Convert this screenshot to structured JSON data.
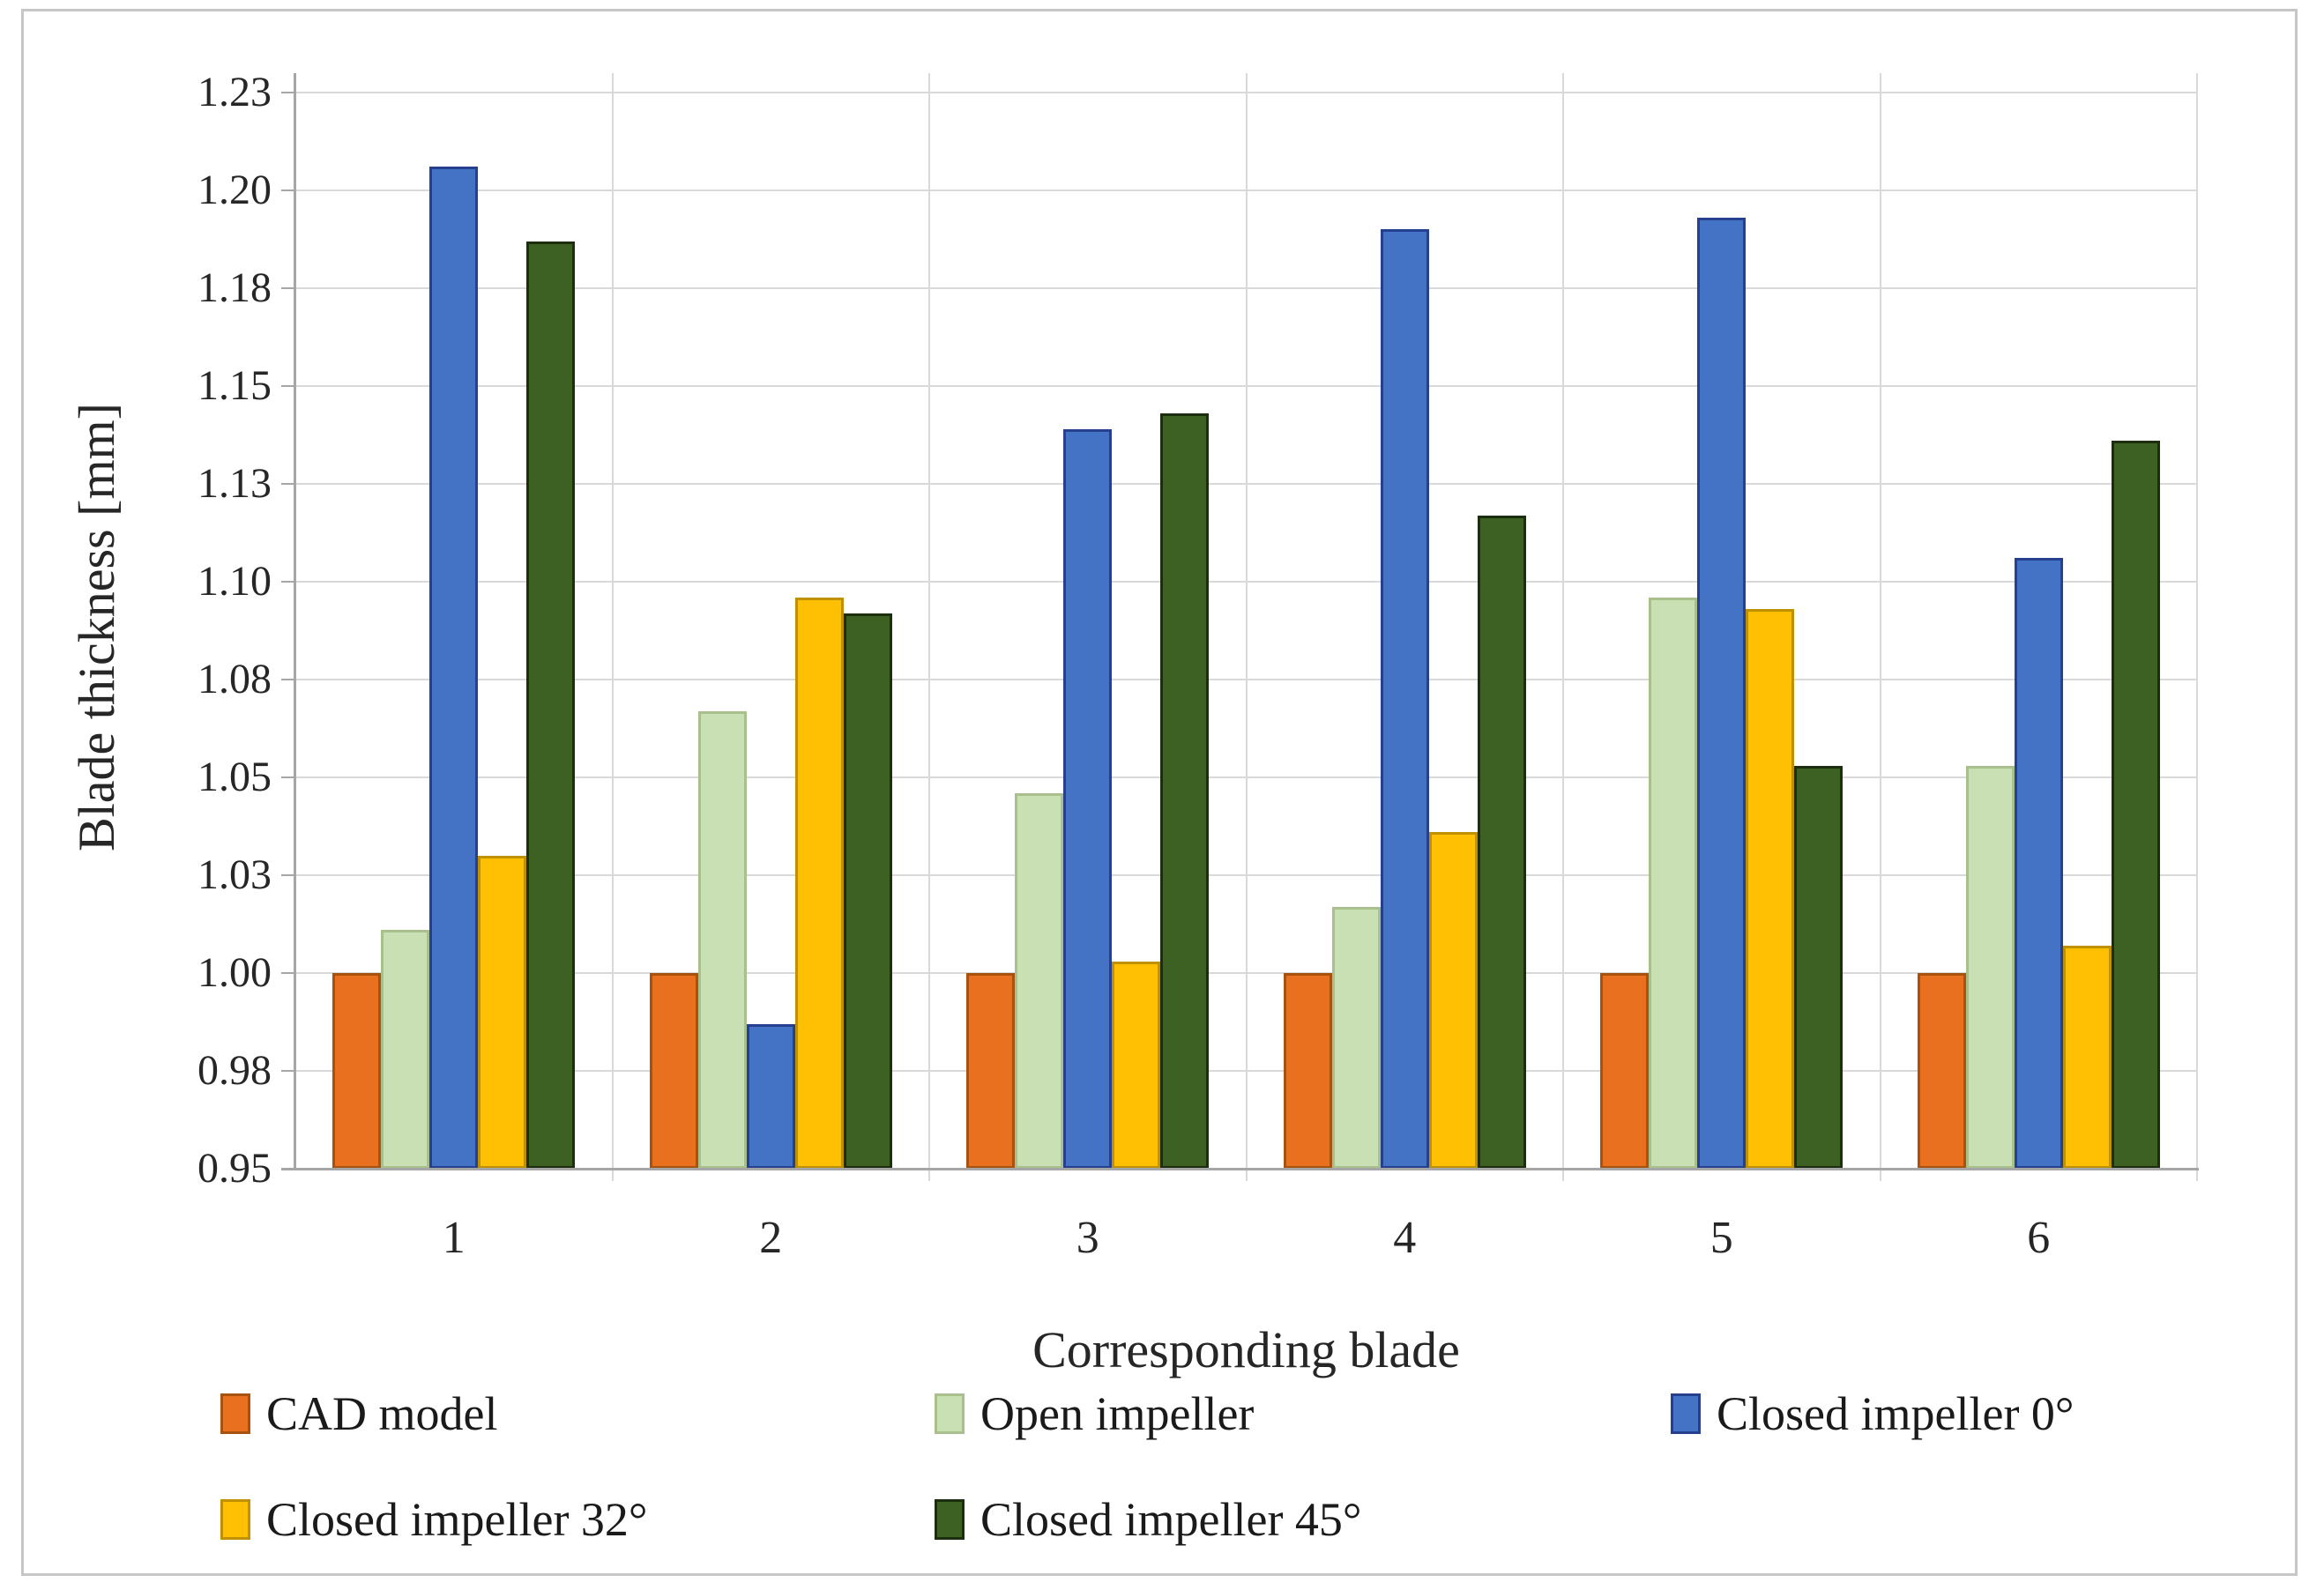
{
  "chart_data": {
    "type": "bar",
    "title": "",
    "xlabel": "Corresponding blade",
    "ylabel": "Blade thickness [mm]",
    "categories": [
      "1",
      "2",
      "3",
      "4",
      "5",
      "6"
    ],
    "series": [
      {
        "name": "CAD model",
        "color": "#e8701e",
        "border": "#a8520f",
        "values": [
          1.0,
          1.0,
          1.0,
          1.0,
          1.0,
          1.0
        ]
      },
      {
        "name": "Open impeller",
        "color": "#c8e0b4",
        "border": "#a9c08d",
        "values": [
          1.011,
          1.067,
          1.046,
          1.017,
          1.096,
          1.053
        ]
      },
      {
        "name": "Closed impeller 0°",
        "color": "#4472c4",
        "border": "#24408e",
        "values": [
          1.206,
          0.987,
          1.139,
          1.19,
          1.193,
          1.106
        ]
      },
      {
        "name": "Closed impeller 32°",
        "color": "#ffc003",
        "border": "#bf9000",
        "values": [
          1.03,
          1.096,
          1.003,
          1.036,
          1.093,
          1.007
        ]
      },
      {
        "name": "Closed impeller 45°",
        "color": "#3d6023",
        "border": "#1c2e0e",
        "values": [
          1.187,
          1.092,
          1.143,
          1.117,
          1.053,
          1.136
        ]
      }
    ],
    "ylim": [
      0.95,
      1.225
    ],
    "ytick_step": 0.025,
    "ytick_labels": [
      "0.95",
      "0.98",
      "1.00",
      "1.03",
      "1.05",
      "1.08",
      "1.10",
      "1.13",
      "1.15",
      "1.18",
      "1.20",
      "1.23"
    ],
    "grid": true,
    "gridline_color": "#d9d9d9",
    "axis_color": "#a6a6a6",
    "legend_position": "bottom",
    "legend_rows": [
      [
        0,
        1,
        2
      ],
      [
        3,
        4
      ]
    ]
  }
}
